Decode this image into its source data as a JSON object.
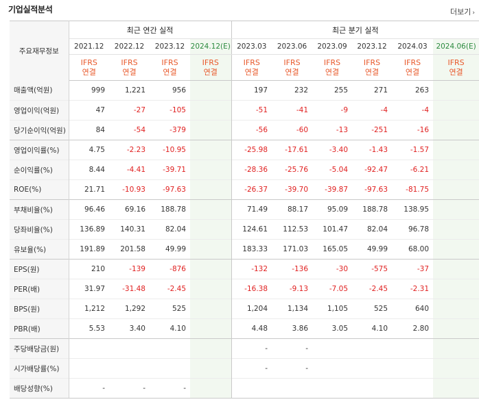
{
  "section_title": "기업실적분석",
  "more_label": "더보기",
  "header": {
    "label_header": "주요재무정보",
    "annual_group": "최근 연간 실적",
    "quarter_group": "최근 분기 실적",
    "annual_dates": [
      "2021.12",
      "2022.12",
      "2023.12",
      "2024.12(E)"
    ],
    "quarter_dates": [
      "2023.03",
      "2023.06",
      "2023.09",
      "2023.12",
      "2024.03",
      "2024.06(E)"
    ],
    "ifrs_line1": "IFRS",
    "ifrs_line2": "연결"
  },
  "rows": [
    {
      "label": "매출액(억원)",
      "annual": [
        "999",
        "1,221",
        "956",
        ""
      ],
      "quarter": [
        "197",
        "232",
        "255",
        "271",
        "263",
        ""
      ]
    },
    {
      "label": "영업이익(억원)",
      "annual": [
        "47",
        "-27",
        "-105",
        ""
      ],
      "quarter": [
        "-51",
        "-41",
        "-9",
        "-4",
        "-4",
        ""
      ]
    },
    {
      "label": "당기순이익(억원)",
      "annual": [
        "84",
        "-54",
        "-379",
        ""
      ],
      "quarter": [
        "-56",
        "-60",
        "-13",
        "-251",
        "-16",
        ""
      ]
    },
    {
      "label": "영업이익률(%)",
      "annual": [
        "4.75",
        "-2.23",
        "-10.95",
        ""
      ],
      "quarter": [
        "-25.98",
        "-17.61",
        "-3.40",
        "-1.43",
        "-1.57",
        ""
      ]
    },
    {
      "label": "순이익률(%)",
      "annual": [
        "8.44",
        "-4.41",
        "-39.71",
        ""
      ],
      "quarter": [
        "-28.36",
        "-25.76",
        "-5.04",
        "-92.47",
        "-6.21",
        ""
      ]
    },
    {
      "label": "ROE(%)",
      "annual": [
        "21.71",
        "-10.93",
        "-97.63",
        ""
      ],
      "quarter": [
        "-26.37",
        "-39.70",
        "-39.87",
        "-97.63",
        "-81.75",
        ""
      ]
    },
    {
      "label": "부채비율(%)",
      "annual": [
        "96.46",
        "69.16",
        "188.78",
        ""
      ],
      "quarter": [
        "71.49",
        "88.17",
        "95.09",
        "188.78",
        "138.95",
        ""
      ]
    },
    {
      "label": "당좌비율(%)",
      "annual": [
        "136.89",
        "140.31",
        "82.04",
        ""
      ],
      "quarter": [
        "124.61",
        "112.53",
        "101.47",
        "82.04",
        "96.78",
        ""
      ]
    },
    {
      "label": "유보율(%)",
      "annual": [
        "191.89",
        "201.58",
        "49.99",
        ""
      ],
      "quarter": [
        "183.33",
        "171.03",
        "165.05",
        "49.99",
        "68.00",
        ""
      ]
    },
    {
      "label": "EPS(원)",
      "annual": [
        "210",
        "-139",
        "-876",
        ""
      ],
      "quarter": [
        "-132",
        "-136",
        "-30",
        "-575",
        "-37",
        ""
      ]
    },
    {
      "label": "PER(배)",
      "annual": [
        "31.97",
        "-31.48",
        "-2.45",
        ""
      ],
      "quarter": [
        "-16.38",
        "-9.13",
        "-7.05",
        "-2.45",
        "-2.31",
        ""
      ]
    },
    {
      "label": "BPS(원)",
      "annual": [
        "1,212",
        "1,292",
        "525",
        ""
      ],
      "quarter": [
        "1,204",
        "1,134",
        "1,105",
        "525",
        "640",
        ""
      ]
    },
    {
      "label": "PBR(배)",
      "annual": [
        "5.53",
        "3.40",
        "4.10",
        ""
      ],
      "quarter": [
        "4.48",
        "3.86",
        "3.05",
        "4.10",
        "2.80",
        ""
      ]
    },
    {
      "label": "주당배당금(원)",
      "annual": [
        "",
        "",
        "",
        ""
      ],
      "quarter": [
        "-",
        "-",
        "",
        "",
        "",
        ""
      ]
    },
    {
      "label": "시가배당률(%)",
      "annual": [
        "",
        "",
        "",
        ""
      ],
      "quarter": [
        "-",
        "-",
        "",
        "",
        "",
        ""
      ]
    },
    {
      "label": "배당성향(%)",
      "annual": [
        "-",
        "-",
        "-",
        ""
      ],
      "quarter": [
        "",
        "",
        "",
        "",
        "",
        ""
      ]
    }
  ],
  "colors": {
    "negative": "#e02020",
    "ifrs": "#e8582a",
    "estimate_bg": "#f2f8f0",
    "estimate_text": "#2b8a3e"
  }
}
